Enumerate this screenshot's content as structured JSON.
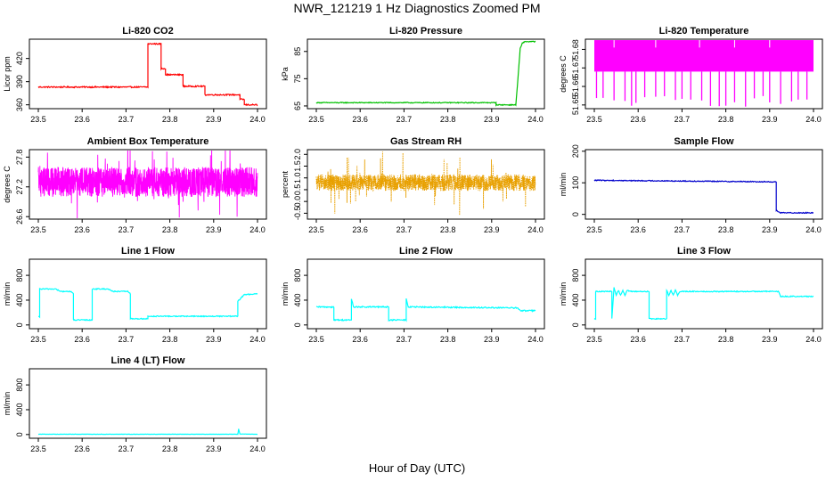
{
  "title": "NWR_121219  1 Hz Diagnostics Zoomed PM",
  "xlabel": "Hour of Day (UTC)",
  "chart_data": [
    {
      "type": "line",
      "title": "Li-820 CO2",
      "ylabel": "Licor ppm",
      "color": "#ff0000",
      "xlim": [
        23.5,
        24.0
      ],
      "ylim": [
        355,
        445
      ],
      "xticks": [
        "23.5",
        "23.6",
        "23.7",
        "23.8",
        "23.9",
        "24.0"
      ],
      "yticks": [
        {
          "v": 360,
          "label": "360"
        },
        {
          "v": 390,
          "label": "390"
        },
        {
          "v": 420,
          "label": "420"
        }
      ],
      "x": [
        23.5,
        23.75,
        23.75,
        23.78,
        23.78,
        23.79,
        23.79,
        23.83,
        23.83,
        23.88,
        23.88,
        23.96,
        23.96,
        23.97,
        23.97,
        24.0
      ],
      "y": [
        383,
        383,
        439,
        439,
        407,
        407,
        399,
        399,
        384,
        384,
        373,
        373,
        367,
        367,
        360,
        360
      ],
      "noise": 0.8
    },
    {
      "type": "line",
      "title": "Li-820 Pressure",
      "ylabel": "kPa",
      "color": "#00c000",
      "xlim": [
        23.5,
        24.0
      ],
      "ylim": [
        64.0,
        89.5
      ],
      "xticks": [
        "23.5",
        "23.6",
        "23.7",
        "23.8",
        "23.9",
        "24.0"
      ],
      "yticks": [
        {
          "v": 65,
          "label": "65"
        },
        {
          "v": 75,
          "label": "75"
        },
        {
          "v": 85,
          "label": "85"
        }
      ],
      "x": [
        23.5,
        23.91,
        23.91,
        23.955,
        23.96,
        23.965,
        23.97,
        23.975,
        24.0
      ],
      "y": [
        66.2,
        66.2,
        65.4,
        65.4,
        75.0,
        86.0,
        88.0,
        88.6,
        88.6
      ],
      "noise": 0.15
    },
    {
      "type": "band",
      "title": "Li-820 Temperature",
      "ylabel": "degrees C",
      "color": "#ff00ff",
      "xlim": [
        23.5,
        24.0
      ],
      "ylim": [
        51.648,
        51.6855
      ],
      "xticks": [
        "23.5",
        "23.6",
        "23.7",
        "23.8",
        "23.9",
        "24.0"
      ],
      "yticks": [
        {
          "v": 51.65,
          "label": "51.65"
        },
        {
          "v": 51.66,
          "label": "51.66"
        },
        {
          "v": 51.67,
          "label": "51.67"
        },
        {
          "v": 51.68,
          "label": "51.68"
        }
      ],
      "band": [
        51.668,
        51.685
      ],
      "spikes": [
        23.505,
        23.52,
        23.545,
        23.57,
        23.585,
        23.595,
        23.615,
        23.64,
        23.66,
        23.685,
        23.7,
        23.72,
        23.745,
        23.765,
        23.785,
        23.8,
        23.82,
        23.845,
        23.865,
        23.885,
        23.9,
        23.925,
        23.95,
        23.965,
        23.985
      ],
      "spike_min": 51.649
    },
    {
      "type": "noise",
      "title": "Ambient Box Temperature",
      "ylabel": "degrees C",
      "color": "#ff00ff",
      "xlim": [
        23.5,
        24.0
      ],
      "ylim": [
        26.55,
        27.95
      ],
      "xticks": [
        "23.5",
        "23.6",
        "23.7",
        "23.8",
        "23.9",
        "24.0"
      ],
      "yticks": [
        {
          "v": 26.6,
          "label": "26.6"
        },
        {
          "v": 27.2,
          "label": "27.2"
        },
        {
          "v": 27.8,
          "label": "27.8"
        }
      ],
      "center": 27.3,
      "amp": 0.3,
      "spike": 0.65
    },
    {
      "type": "dotted-noise",
      "title": "Gas Stream RH",
      "ylabel": "percent",
      "color": "#e8a000",
      "xlim": [
        23.5,
        24.0
      ],
      "ylim": [
        -0.75,
        2.2
      ],
      "xticks": [
        "23.5",
        "23.6",
        "23.7",
        "23.8",
        "23.9",
        "24.0"
      ],
      "yticks": [
        {
          "v": -0.5,
          "label": "-0.5"
        },
        {
          "v": 0.0,
          "label": "0.0"
        },
        {
          "v": 0.5,
          "label": "0.5"
        },
        {
          "v": 1.0,
          "label": "1.0"
        },
        {
          "v": 1.5,
          "label": "1.5"
        },
        {
          "v": 2.0,
          "label": "2.0"
        }
      ],
      "center": 0.8,
      "amp": 0.35,
      "spike": 1.3
    },
    {
      "type": "line",
      "title": "Sample Flow",
      "ylabel": "ml/min",
      "color": "#0000cc",
      "xlim": [
        23.5,
        24.0
      ],
      "ylim": [
        -15,
        205
      ],
      "xticks": [
        "23.5",
        "23.6",
        "23.7",
        "23.8",
        "23.9",
        "24.0"
      ],
      "yticks": [
        {
          "v": 0,
          "label": "0"
        },
        {
          "v": 100,
          "label": "100"
        },
        {
          "v": 200,
          "label": "200"
        }
      ],
      "x": [
        23.5,
        23.915,
        23.915,
        23.925,
        24.0
      ],
      "y": [
        108,
        103,
        12,
        5,
        5
      ],
      "noise": 1.5
    },
    {
      "type": "line",
      "title": "Line 1 Flow",
      "ylabel": "ml/min",
      "color": "#00ffff",
      "xlim": [
        23.5,
        24.0
      ],
      "ylim": [
        -60,
        1060
      ],
      "xticks": [
        "23.5",
        "23.6",
        "23.7",
        "23.8",
        "23.9",
        "24.0"
      ],
      "yticks": [
        {
          "v": 0,
          "label": "0"
        },
        {
          "v": 400,
          "label": "400"
        },
        {
          "v": 800,
          "label": "800"
        }
      ],
      "x": [
        23.5,
        23.503,
        23.503,
        23.54,
        23.55,
        23.575,
        23.58,
        23.58,
        23.623,
        23.623,
        23.66,
        23.67,
        23.705,
        23.71,
        23.71,
        23.75,
        23.75,
        23.955,
        23.955,
        23.97,
        24.0
      ],
      "y": [
        130,
        130,
        580,
        580,
        540,
        540,
        500,
        80,
        80,
        580,
        580,
        540,
        540,
        500,
        100,
        100,
        140,
        140,
        380,
        490,
        500
      ],
      "noise": 8
    },
    {
      "type": "line",
      "title": "Line 2 Flow",
      "ylabel": "ml/min",
      "color": "#00ffff",
      "xlim": [
        23.5,
        24.0
      ],
      "ylim": [
        -60,
        1060
      ],
      "xticks": [
        "23.5",
        "23.6",
        "23.7",
        "23.8",
        "23.9",
        "24.0"
      ],
      "yticks": [
        {
          "v": 0,
          "label": "0"
        },
        {
          "v": 400,
          "label": "400"
        },
        {
          "v": 800,
          "label": "800"
        }
      ],
      "x": [
        23.5,
        23.54,
        23.54,
        23.58,
        23.58,
        23.585,
        23.665,
        23.665,
        23.705,
        23.705,
        23.71,
        23.96,
        23.965,
        24.0
      ],
      "y": [
        290,
        290,
        80,
        80,
        420,
        290,
        290,
        80,
        80,
        420,
        290,
        275,
        230,
        230
      ],
      "noise": 10
    },
    {
      "type": "line",
      "title": "Line 3 Flow",
      "ylabel": "ml/min",
      "color": "#00ffff",
      "xlim": [
        23.5,
        24.0
      ],
      "ylim": [
        -60,
        1060
      ],
      "xticks": [
        "23.5",
        "23.6",
        "23.7",
        "23.8",
        "23.9",
        "24.0"
      ],
      "yticks": [
        {
          "v": 0,
          "label": "0"
        },
        {
          "v": 400,
          "label": "400"
        },
        {
          "v": 800,
          "label": "800"
        }
      ],
      "x": [
        23.5,
        23.503,
        23.503,
        23.54,
        23.54,
        23.545,
        23.55,
        23.555,
        23.56,
        23.565,
        23.57,
        23.575,
        23.58,
        23.625,
        23.625,
        23.665,
        23.665,
        23.67,
        23.675,
        23.68,
        23.685,
        23.69,
        23.695,
        23.7,
        23.92,
        23.925,
        24.0
      ],
      "y": [
        100,
        100,
        540,
        540,
        100,
        600,
        480,
        560,
        480,
        560,
        480,
        560,
        540,
        540,
        100,
        100,
        560,
        480,
        560,
        480,
        560,
        480,
        540,
        540,
        540,
        460,
        460
      ],
      "noise": 8
    },
    {
      "type": "line",
      "title": "Line 4 (LT) Flow",
      "ylabel": "ml/min",
      "color": "#00ffff",
      "xlim": [
        23.5,
        24.0
      ],
      "ylim": [
        -60,
        1060
      ],
      "xticks": [
        "23.5",
        "23.6",
        "23.7",
        "23.8",
        "23.9",
        "24.0"
      ],
      "yticks": [
        {
          "v": 0,
          "label": "0"
        },
        {
          "v": 400,
          "label": "400"
        },
        {
          "v": 800,
          "label": "800"
        }
      ],
      "x": [
        23.5,
        23.955,
        23.957,
        23.958,
        23.96,
        24.0
      ],
      "y": [
        5,
        5,
        90,
        60,
        8,
        5
      ],
      "noise": 2
    }
  ]
}
